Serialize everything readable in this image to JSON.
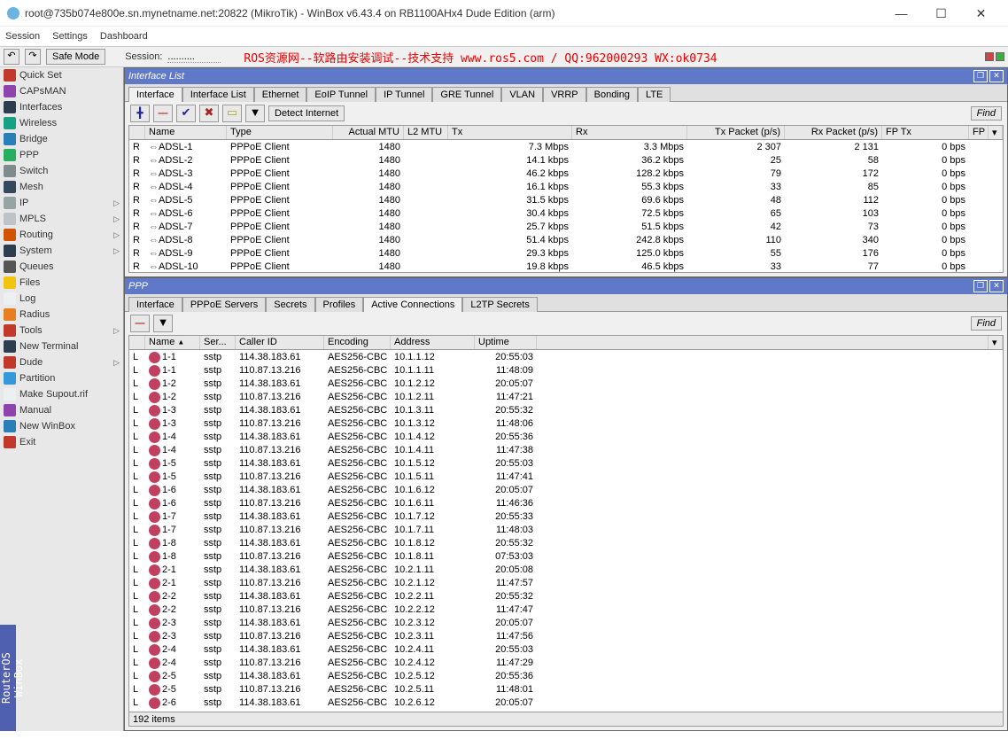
{
  "title": "root@735b074e800e.sn.mynetname.net:20822 (MikroTik) - WinBox v6.43.4 on RB1100AHx4 Dude Edition (arm)",
  "menu": {
    "m1": "Session",
    "m2": "Settings",
    "m3": "Dashboard"
  },
  "tb": {
    "safe": "Safe Mode",
    "sessLbl": "Session:",
    "sessVal": "..........",
    "banner": "ROS资源网--软路由安装调试--技术支持 www.ros5.com  /  QQ:962000293  WX:ok0734"
  },
  "sidebar": [
    {
      "lbl": "Quick Set",
      "c": "#c0392b"
    },
    {
      "lbl": "CAPsMAN",
      "c": "#8e44ad"
    },
    {
      "lbl": "Interfaces",
      "c": "#2c3e50"
    },
    {
      "lbl": "Wireless",
      "c": "#16a085"
    },
    {
      "lbl": "Bridge",
      "c": "#2980b9"
    },
    {
      "lbl": "PPP",
      "c": "#27ae60"
    },
    {
      "lbl": "Switch",
      "c": "#7f8c8d"
    },
    {
      "lbl": "Mesh",
      "c": "#34495e"
    },
    {
      "lbl": "IP",
      "c": "#95a5a6",
      "d": 1
    },
    {
      "lbl": "MPLS",
      "c": "#bdc3c7",
      "d": 1
    },
    {
      "lbl": "Routing",
      "c": "#d35400",
      "d": 1
    },
    {
      "lbl": "System",
      "c": "#2c3e50",
      "d": 1
    },
    {
      "lbl": "Queues",
      "c": "#555"
    },
    {
      "lbl": "Files",
      "c": "#f1c40f"
    },
    {
      "lbl": "Log",
      "c": "#ecf0f1"
    },
    {
      "lbl": "Radius",
      "c": "#e67e22"
    },
    {
      "lbl": "Tools",
      "c": "#c0392b",
      "d": 1
    },
    {
      "lbl": "New Terminal",
      "c": "#2c3e50"
    },
    {
      "lbl": "Dude",
      "c": "#c0392b",
      "d": 1
    },
    {
      "lbl": "Partition",
      "c": "#3498db"
    },
    {
      "lbl": "Make Supout.rif",
      "c": "#ecf0f1"
    },
    {
      "lbl": "Manual",
      "c": "#8e44ad"
    },
    {
      "lbl": "New WinBox",
      "c": "#2980b9"
    },
    {
      "lbl": "Exit",
      "c": "#c0392b"
    }
  ],
  "iface": {
    "title": "Interface List",
    "tabs": [
      "Interface",
      "Interface List",
      "Ethernet",
      "EoIP Tunnel",
      "IP Tunnel",
      "GRE Tunnel",
      "VLAN",
      "VRRP",
      "Bonding",
      "LTE"
    ],
    "detect": "Detect Internet",
    "find": "Find",
    "cols": {
      "flag": "",
      "name": "Name",
      "type": "Type",
      "mtu": "Actual MTU",
      "l2": "L2 MTU",
      "tx": "Tx",
      "rx": "Rx",
      "txp": "Tx Packet (p/s)",
      "rxp": "Rx Packet (p/s)",
      "fptx": "FP Tx",
      "fp": "FP"
    },
    "rows": [
      {
        "f": "R",
        "n": "ADSL-1",
        "t": "PPPoE Client",
        "m": "1480",
        "tx": "7.3 Mbps",
        "rx": "3.3 Mbps",
        "tp": "2 307",
        "rp": "2 131",
        "ft": "0 bps"
      },
      {
        "f": "R",
        "n": "ADSL-2",
        "t": "PPPoE Client",
        "m": "1480",
        "tx": "14.1 kbps",
        "rx": "36.2 kbps",
        "tp": "25",
        "rp": "58",
        "ft": "0 bps"
      },
      {
        "f": "R",
        "n": "ADSL-3",
        "t": "PPPoE Client",
        "m": "1480",
        "tx": "46.2 kbps",
        "rx": "128.2 kbps",
        "tp": "79",
        "rp": "172",
        "ft": "0 bps"
      },
      {
        "f": "R",
        "n": "ADSL-4",
        "t": "PPPoE Client",
        "m": "1480",
        "tx": "16.1 kbps",
        "rx": "55.3 kbps",
        "tp": "33",
        "rp": "85",
        "ft": "0 bps"
      },
      {
        "f": "R",
        "n": "ADSL-5",
        "t": "PPPoE Client",
        "m": "1480",
        "tx": "31.5 kbps",
        "rx": "69.6 kbps",
        "tp": "48",
        "rp": "112",
        "ft": "0 bps"
      },
      {
        "f": "R",
        "n": "ADSL-6",
        "t": "PPPoE Client",
        "m": "1480",
        "tx": "30.4 kbps",
        "rx": "72.5 kbps",
        "tp": "65",
        "rp": "103",
        "ft": "0 bps"
      },
      {
        "f": "R",
        "n": "ADSL-7",
        "t": "PPPoE Client",
        "m": "1480",
        "tx": "25.7 kbps",
        "rx": "51.5 kbps",
        "tp": "42",
        "rp": "73",
        "ft": "0 bps"
      },
      {
        "f": "R",
        "n": "ADSL-8",
        "t": "PPPoE Client",
        "m": "1480",
        "tx": "51.4 kbps",
        "rx": "242.8 kbps",
        "tp": "110",
        "rp": "340",
        "ft": "0 bps"
      },
      {
        "f": "R",
        "n": "ADSL-9",
        "t": "PPPoE Client",
        "m": "1480",
        "tx": "29.3 kbps",
        "rx": "125.0 kbps",
        "tp": "55",
        "rp": "176",
        "ft": "0 bps"
      },
      {
        "f": "R",
        "n": "ADSL-10",
        "t": "PPPoE Client",
        "m": "1480",
        "tx": "19.8 kbps",
        "rx": "46.5 kbps",
        "tp": "33",
        "rp": "77",
        "ft": "0 bps"
      }
    ]
  },
  "ppp": {
    "title": "PPP",
    "tabs": [
      "Interface",
      "PPPoE Servers",
      "Secrets",
      "Profiles",
      "Active Connections",
      "L2TP Secrets"
    ],
    "find": "Find",
    "cols": {
      "flag": "",
      "name": "Name",
      "srv": "Ser...",
      "cid": "Caller ID",
      "enc": "Encoding",
      "addr": "Address",
      "up": "Uptime"
    },
    "rows": [
      {
        "f": "L",
        "n": "1-1",
        "s": "sstp",
        "c": "114.38.183.61",
        "e": "AES256-CBC",
        "a": "10.1.1.12",
        "u": "20:55:03"
      },
      {
        "f": "L",
        "n": "1-1",
        "s": "sstp",
        "c": "110.87.13.216",
        "e": "AES256-CBC",
        "a": "10.1.1.11",
        "u": "11:48:09"
      },
      {
        "f": "L",
        "n": "1-2",
        "s": "sstp",
        "c": "114.38.183.61",
        "e": "AES256-CBC",
        "a": "10.1.2.12",
        "u": "20:05:07"
      },
      {
        "f": "L",
        "n": "1-2",
        "s": "sstp",
        "c": "110.87.13.216",
        "e": "AES256-CBC",
        "a": "10.1.2.11",
        "u": "11:47:21"
      },
      {
        "f": "L",
        "n": "1-3",
        "s": "sstp",
        "c": "114.38.183.61",
        "e": "AES256-CBC",
        "a": "10.1.3.11",
        "u": "20:55:32"
      },
      {
        "f": "L",
        "n": "1-3",
        "s": "sstp",
        "c": "110.87.13.216",
        "e": "AES256-CBC",
        "a": "10.1.3.12",
        "u": "11:48:06"
      },
      {
        "f": "L",
        "n": "1-4",
        "s": "sstp",
        "c": "114.38.183.61",
        "e": "AES256-CBC",
        "a": "10.1.4.12",
        "u": "20:55:36"
      },
      {
        "f": "L",
        "n": "1-4",
        "s": "sstp",
        "c": "110.87.13.216",
        "e": "AES256-CBC",
        "a": "10.1.4.11",
        "u": "11:47:38"
      },
      {
        "f": "L",
        "n": "1-5",
        "s": "sstp",
        "c": "114.38.183.61",
        "e": "AES256-CBC",
        "a": "10.1.5.12",
        "u": "20:55:03"
      },
      {
        "f": "L",
        "n": "1-5",
        "s": "sstp",
        "c": "110.87.13.216",
        "e": "AES256-CBC",
        "a": "10.1.5.11",
        "u": "11:47:41"
      },
      {
        "f": "L",
        "n": "1-6",
        "s": "sstp",
        "c": "114.38.183.61",
        "e": "AES256-CBC",
        "a": "10.1.6.12",
        "u": "20:05:07"
      },
      {
        "f": "L",
        "n": "1-6",
        "s": "sstp",
        "c": "110.87.13.216",
        "e": "AES256-CBC",
        "a": "10.1.6.11",
        "u": "11:46:36"
      },
      {
        "f": "L",
        "n": "1-7",
        "s": "sstp",
        "c": "114.38.183.61",
        "e": "AES256-CBC",
        "a": "10.1.7.12",
        "u": "20:55:33"
      },
      {
        "f": "L",
        "n": "1-7",
        "s": "sstp",
        "c": "110.87.13.216",
        "e": "AES256-CBC",
        "a": "10.1.7.11",
        "u": "11:48:03"
      },
      {
        "f": "L",
        "n": "1-8",
        "s": "sstp",
        "c": "114.38.183.61",
        "e": "AES256-CBC",
        "a": "10.1.8.12",
        "u": "20:55:32"
      },
      {
        "f": "L",
        "n": "1-8",
        "s": "sstp",
        "c": "110.87.13.216",
        "e": "AES256-CBC",
        "a": "10.1.8.11",
        "u": "07:53:03"
      },
      {
        "f": "L",
        "n": "2-1",
        "s": "sstp",
        "c": "114.38.183.61",
        "e": "AES256-CBC",
        "a": "10.2.1.11",
        "u": "20:05:08"
      },
      {
        "f": "L",
        "n": "2-1",
        "s": "sstp",
        "c": "110.87.13.216",
        "e": "AES256-CBC",
        "a": "10.2.1.12",
        "u": "11:47:57"
      },
      {
        "f": "L",
        "n": "2-2",
        "s": "sstp",
        "c": "114.38.183.61",
        "e": "AES256-CBC",
        "a": "10.2.2.11",
        "u": "20:55:32"
      },
      {
        "f": "L",
        "n": "2-2",
        "s": "sstp",
        "c": "110.87.13.216",
        "e": "AES256-CBC",
        "a": "10.2.2.12",
        "u": "11:47:47"
      },
      {
        "f": "L",
        "n": "2-3",
        "s": "sstp",
        "c": "114.38.183.61",
        "e": "AES256-CBC",
        "a": "10.2.3.12",
        "u": "20:05:07"
      },
      {
        "f": "L",
        "n": "2-3",
        "s": "sstp",
        "c": "110.87.13.216",
        "e": "AES256-CBC",
        "a": "10.2.3.11",
        "u": "11:47:56"
      },
      {
        "f": "L",
        "n": "2-4",
        "s": "sstp",
        "c": "114.38.183.61",
        "e": "AES256-CBC",
        "a": "10.2.4.11",
        "u": "20:55:03"
      },
      {
        "f": "L",
        "n": "2-4",
        "s": "sstp",
        "c": "110.87.13.216",
        "e": "AES256-CBC",
        "a": "10.2.4.12",
        "u": "11:47:29"
      },
      {
        "f": "L",
        "n": "2-5",
        "s": "sstp",
        "c": "114.38.183.61",
        "e": "AES256-CBC",
        "a": "10.2.5.12",
        "u": "20:55:36"
      },
      {
        "f": "L",
        "n": "2-5",
        "s": "sstp",
        "c": "110.87.13.216",
        "e": "AES256-CBC",
        "a": "10.2.5.11",
        "u": "11:48:01"
      },
      {
        "f": "L",
        "n": "2-6",
        "s": "sstp",
        "c": "114.38.183.61",
        "e": "AES256-CBC",
        "a": "10.2.6.12",
        "u": "20:05:07"
      }
    ],
    "status": "192 items"
  },
  "vtab": "RouterOS WinBox"
}
